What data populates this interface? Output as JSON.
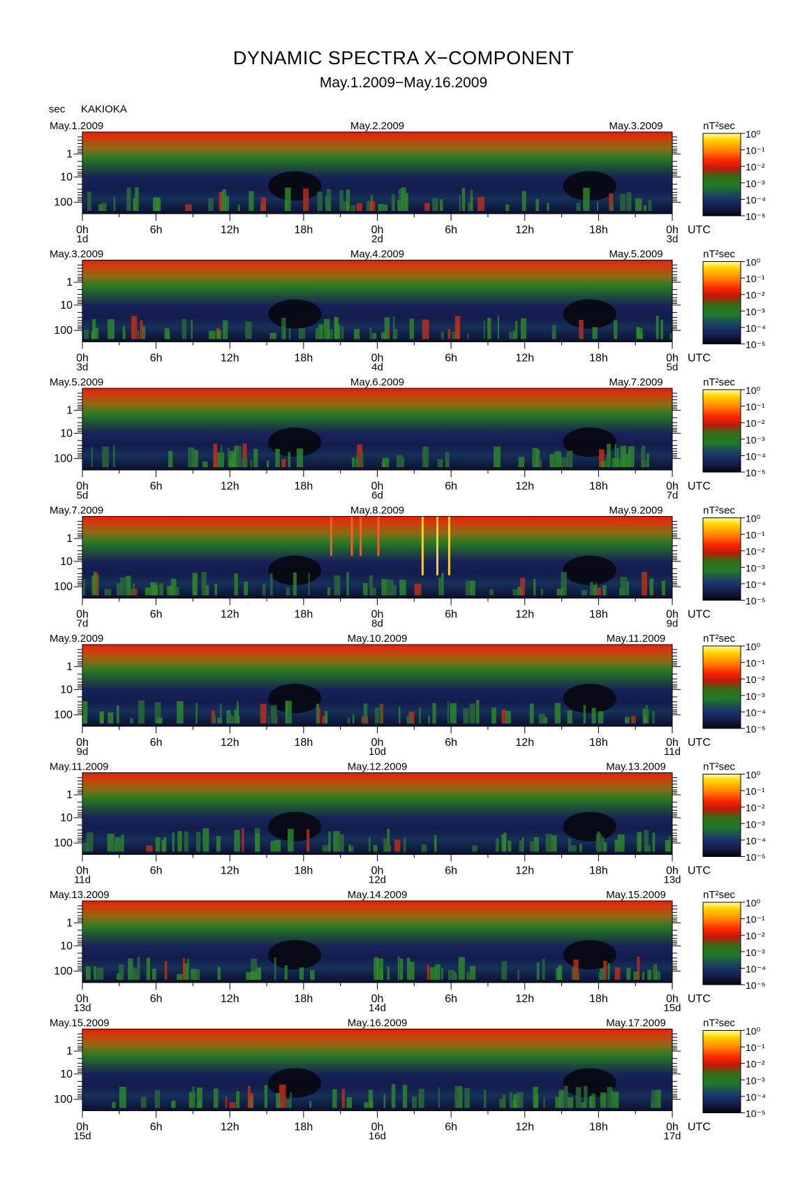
{
  "title": "DYNAMIC SPECTRA X−COMPONENT",
  "subtitle": "May.1.2009−May.16.2009",
  "y_unit_label": "sec",
  "station": "KAKIOKA",
  "colorbar_unit": "nT²sec",
  "utc_label": "UTC",
  "colors": {
    "background": "#ffffff",
    "scale": [
      "#0a0a12",
      "#1c2a5e",
      "#1f7a2a",
      "#c81e0a",
      "#ff3a00",
      "#ffb400",
      "#ffff80"
    ]
  },
  "chart_data": {
    "type": "heatmap",
    "title": "DYNAMIC SPECTRA X−COMPONENT",
    "ylabel": "sec",
    "y_scale": "log",
    "y_ticks": [
      "1",
      "10",
      "100"
    ],
    "x_ticks": [
      "0h",
      "6h",
      "12h",
      "18h",
      "0h",
      "6h",
      "12h",
      "18h",
      "0h"
    ],
    "colorbar_ticks": [
      "10⁰",
      "10⁻¹",
      "10⁻²",
      "10⁻³",
      "10⁻⁴",
      "10⁻⁵"
    ],
    "panels": [
      {
        "start": "May.1.2009",
        "mid": "May.2.2009",
        "end": "May.3.2009",
        "days": [
          "1d",
          "2d",
          "3d"
        ]
      },
      {
        "start": "May.3.2009",
        "mid": "May.4.2009",
        "end": "May.5.2009",
        "days": [
          "3d",
          "4d",
          "5d"
        ]
      },
      {
        "start": "May.5.2009",
        "mid": "May.6.2009",
        "end": "May.7.2009",
        "days": [
          "5d",
          "6d",
          "7d"
        ]
      },
      {
        "start": "May.7.2009",
        "mid": "May.8.2009",
        "end": "May.9.2009",
        "days": [
          "7d",
          "8d",
          "9d"
        ]
      },
      {
        "start": "May.9.2009",
        "mid": "May.10.2009",
        "end": "May.11.2009",
        "days": [
          "9d",
          "10d",
          "11d"
        ]
      },
      {
        "start": "May.11.2009",
        "mid": "May.12.2009",
        "end": "May.13.2009",
        "days": [
          "11d",
          "12d",
          "13d"
        ]
      },
      {
        "start": "May.13.2009",
        "mid": "May.14.2009",
        "end": "May.15.2009",
        "days": [
          "13d",
          "14d",
          "15d"
        ]
      },
      {
        "start": "May.15.2009",
        "mid": "May.16.2009",
        "end": "May.17.2009",
        "days": [
          "15d",
          "16d",
          "17d"
        ]
      }
    ]
  }
}
